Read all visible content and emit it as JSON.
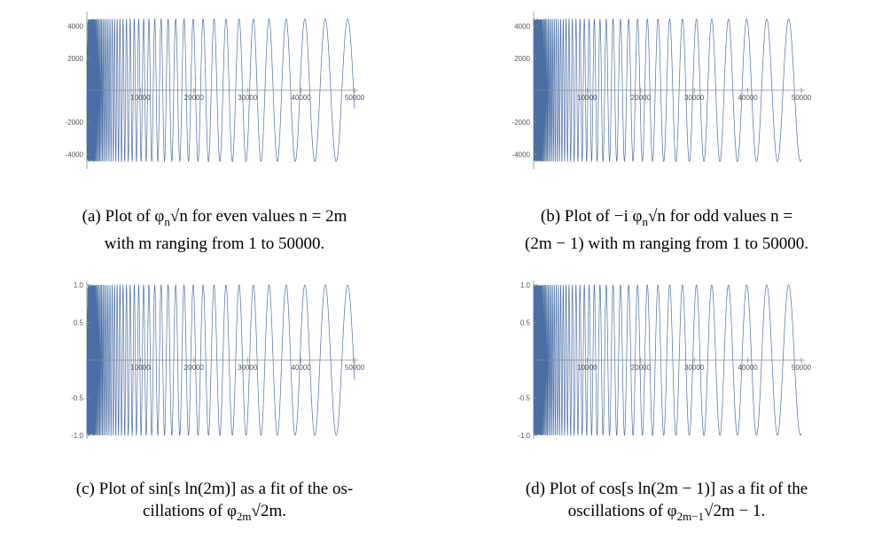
{
  "captions": {
    "a": {
      "l1": "(a) Plot of φ",
      "s1": "n",
      "l2": "√n for even values n = 2m",
      "l3": "with m ranging from 1 to 50000."
    },
    "b": {
      "l1": "(b) Plot of −i φ",
      "s1": "n",
      "l2": "√n for odd values n =",
      "l3": "(2m − 1) with m ranging from 1 to 50000."
    },
    "c": {
      "l1": "(c) Plot of sin[s ln(2m)] as a fit of the os-",
      "l2": "cillations of φ",
      "s1": "2m",
      "l3": "√2m."
    },
    "d": {
      "l1": "(d) Plot of cos[s ln(2m − 1)] as a fit of the",
      "l2": "oscillations of φ",
      "s1": "2m−1",
      "l3": "√2m − 1."
    }
  },
  "chart_data": [
    {
      "id": "a",
      "type": "line",
      "color": "#4a6fa5",
      "x_ticks": [
        "10000",
        "20000",
        "30000",
        "40000",
        "50000"
      ],
      "y_ticks": [
        "4000",
        "2000",
        "-2000",
        "-4000"
      ],
      "xlim": [
        0,
        50000
      ],
      "ylim": [
        -4700,
        4700
      ],
      "amplitude": 4450,
      "phase": "sin"
    },
    {
      "id": "b",
      "type": "line",
      "color": "#4a6fa5",
      "x_ticks": [
        "10000",
        "20000",
        "30000",
        "40000",
        "50000"
      ],
      "y_ticks": [
        "4000",
        "2000",
        "-2000",
        "-4000"
      ],
      "xlim": [
        0,
        50000
      ],
      "ylim": [
        -4700,
        4700
      ],
      "amplitude": 4450,
      "phase": "cos"
    },
    {
      "id": "c",
      "type": "line",
      "color": "#4a6fa5",
      "x_ticks": [
        "10000",
        "20000",
        "30000",
        "40000",
        "50000"
      ],
      "y_ticks": [
        "1.0",
        "0.5",
        "-0.5",
        "-1.0"
      ],
      "xlim": [
        0,
        50000
      ],
      "ylim": [
        -1.0,
        1.0
      ],
      "amplitude": 1.0,
      "phase": "sin"
    },
    {
      "id": "d",
      "type": "line",
      "color": "#4a6fa5",
      "x_ticks": [
        "10000",
        "20000",
        "30000",
        "40000",
        "50000"
      ],
      "y_ticks": [
        "1.0",
        "0.5",
        "-0.5",
        "-1.0"
      ],
      "xlim": [
        0,
        50000
      ],
      "ylim": [
        -1.0,
        1.0
      ],
      "amplitude": 1.0,
      "phase": "cos"
    }
  ]
}
